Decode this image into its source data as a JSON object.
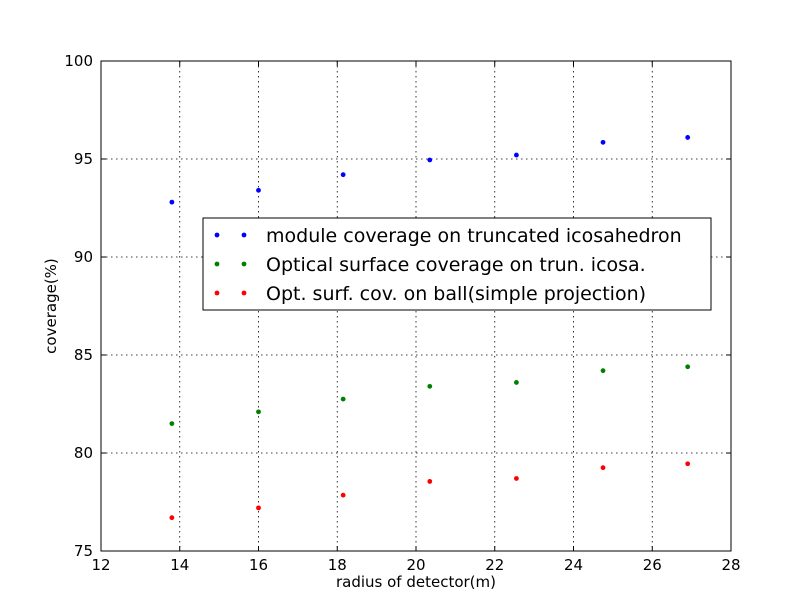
{
  "chart_data": {
    "type": "scatter",
    "title": "",
    "xlabel": "radius of detector(m)",
    "ylabel": "coverage(%)",
    "xlim": [
      12,
      28
    ],
    "ylim": [
      75,
      100
    ],
    "xticks": [
      "12",
      "14",
      "16",
      "18",
      "20",
      "22",
      "24",
      "26",
      "28"
    ],
    "yticks": [
      "75",
      "80",
      "85",
      "90",
      "95",
      "100"
    ],
    "grid": true,
    "legend_position": "center",
    "x": [
      13.8,
      16.0,
      18.15,
      20.35,
      22.55,
      24.75,
      26.9
    ],
    "series": [
      {
        "name": "module coverage on truncated icosahedron",
        "color": "#0000ff",
        "values": [
          92.8,
          93.4,
          94.2,
          94.95,
          95.2,
          95.85,
          96.1
        ]
      },
      {
        "name": "Optical surface coverage on trun. icosa.",
        "color": "#008000",
        "values": [
          81.5,
          82.1,
          82.75,
          83.4,
          83.6,
          84.2,
          84.4
        ]
      },
      {
        "name": "Opt. surf. cov. on ball(simple projection)",
        "color": "#ff0000",
        "values": [
          76.7,
          77.2,
          77.85,
          78.55,
          78.7,
          79.25,
          79.45
        ]
      }
    ]
  }
}
